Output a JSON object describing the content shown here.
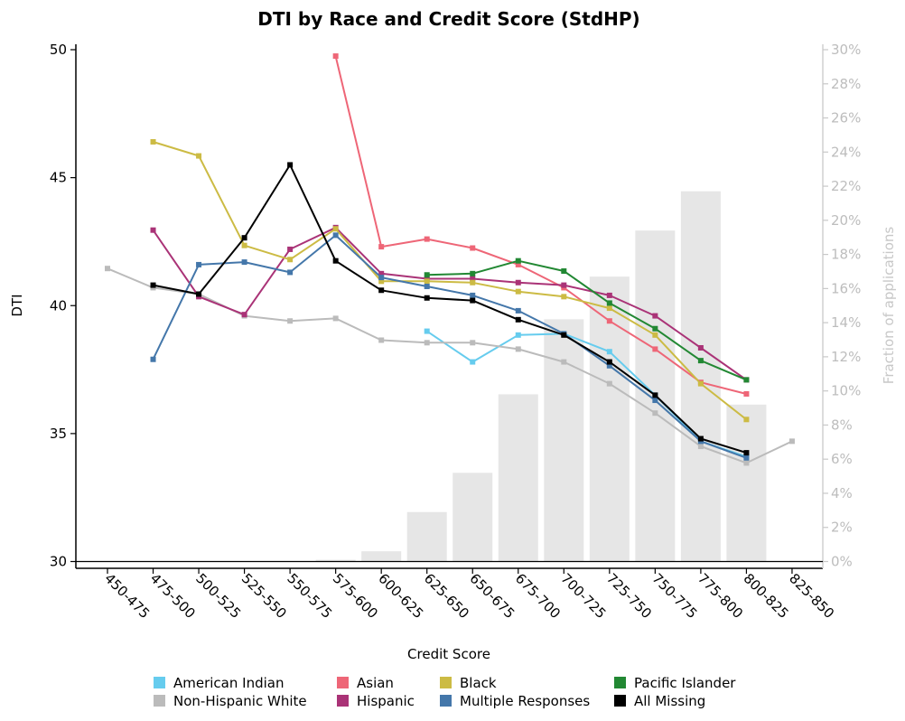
{
  "chart_data": {
    "type": "line",
    "title": "DTI by Race and Credit Score (StdHP)",
    "xlabel": "Credit Score",
    "ylabel": "DTI",
    "y2label": "Fraction of applications",
    "ylim": [
      30,
      50
    ],
    "y2lim": [
      0,
      30
    ],
    "yticks": [
      "30",
      "35",
      "40",
      "45",
      "50"
    ],
    "y2ticks": [
      "0%",
      "2%",
      "4%",
      "6%",
      "8%",
      "10%",
      "12%",
      "14%",
      "16%",
      "18%",
      "20%",
      "22%",
      "24%",
      "26%",
      "28%",
      "30%"
    ],
    "categories": [
      "450-475",
      "475-500",
      "500-525",
      "525-550",
      "550-575",
      "575-600",
      "600-625",
      "625-650",
      "650-675",
      "675-700",
      "700-725",
      "725-750",
      "750-775",
      "775-800",
      "800-825",
      "825-850"
    ],
    "bar_series": {
      "name": "Fraction of applications",
      "color": "#e6e6e6",
      "values": [
        0.0,
        0.0,
        0.0,
        0.0,
        0.0,
        0.1,
        0.6,
        2.9,
        5.2,
        9.8,
        14.2,
        16.7,
        19.4,
        21.7,
        9.2,
        0.0
      ]
    },
    "series": [
      {
        "name": "American Indian",
        "color": "#66ccee",
        "values": [
          null,
          null,
          null,
          null,
          null,
          null,
          null,
          39.0,
          37.8,
          38.85,
          38.9,
          38.2,
          36.5,
          34.7,
          34.1,
          null
        ]
      },
      {
        "name": "Non-Hispanic White",
        "color": "#bbbbbb",
        "values": [
          41.45,
          40.7,
          40.45,
          39.6,
          39.4,
          39.5,
          38.65,
          38.55,
          38.55,
          38.3,
          37.8,
          36.95,
          35.8,
          34.5,
          33.85,
          34.7
        ]
      },
      {
        "name": "Asian",
        "color": "#ee6677",
        "values": [
          null,
          null,
          null,
          null,
          null,
          49.75,
          42.3,
          42.6,
          42.25,
          41.6,
          40.7,
          39.4,
          38.3,
          37.0,
          36.55,
          null
        ]
      },
      {
        "name": "Hispanic",
        "color": "#aa3377",
        "values": [
          null,
          42.95,
          40.35,
          39.65,
          42.2,
          43.05,
          41.25,
          41.05,
          41.05,
          40.9,
          40.8,
          40.4,
          39.6,
          38.35,
          37.1,
          null
        ]
      },
      {
        "name": "Black",
        "color": "#ccbb44",
        "values": [
          null,
          46.4,
          45.85,
          42.35,
          41.8,
          43.0,
          40.95,
          40.95,
          40.9,
          40.55,
          40.35,
          39.9,
          38.85,
          36.95,
          35.55,
          null
        ]
      },
      {
        "name": "Multiple Responses",
        "color": "#4477aa",
        "values": [
          null,
          37.9,
          41.6,
          41.7,
          41.3,
          42.75,
          41.1,
          40.75,
          40.4,
          39.8,
          38.9,
          37.65,
          36.3,
          34.7,
          34.05,
          null
        ]
      },
      {
        "name": "Pacific Islander",
        "color": "#228833",
        "values": [
          null,
          null,
          null,
          null,
          null,
          null,
          null,
          41.2,
          41.25,
          41.75,
          41.35,
          40.1,
          39.1,
          37.85,
          37.1,
          null
        ]
      },
      {
        "name": "All Missing",
        "color": "#000000",
        "values": [
          null,
          40.8,
          40.45,
          42.65,
          45.5,
          41.75,
          40.6,
          40.3,
          40.2,
          39.45,
          38.85,
          37.8,
          36.5,
          34.8,
          34.25,
          null
        ]
      }
    ]
  }
}
